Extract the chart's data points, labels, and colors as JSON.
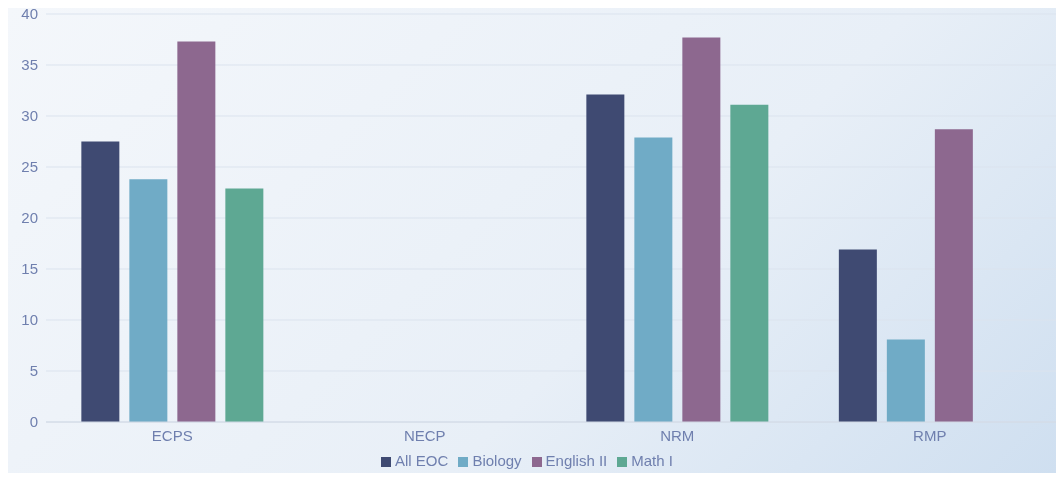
{
  "chart_data": {
    "type": "bar",
    "categories": [
      "ECPS",
      "NECP",
      "NRM",
      "RMP"
    ],
    "series": [
      {
        "name": "All EOC",
        "color": "#3f4a72",
        "values": [
          27.5,
          null,
          32.1,
          16.9
        ]
      },
      {
        "name": "Biology",
        "color": "#70abc6",
        "values": [
          23.8,
          null,
          27.9,
          8.1
        ]
      },
      {
        "name": "English II",
        "color": "#8d688f",
        "values": [
          37.3,
          null,
          37.7,
          28.7
        ]
      },
      {
        "name": "Math I",
        "color": "#5ea893",
        "values": [
          22.9,
          null,
          31.1,
          null
        ]
      }
    ],
    "ylim": [
      0,
      40
    ],
    "yticks": [
      0,
      5,
      10,
      15,
      20,
      25,
      30,
      35,
      40
    ],
    "grid": "y",
    "legend": "bottom"
  }
}
